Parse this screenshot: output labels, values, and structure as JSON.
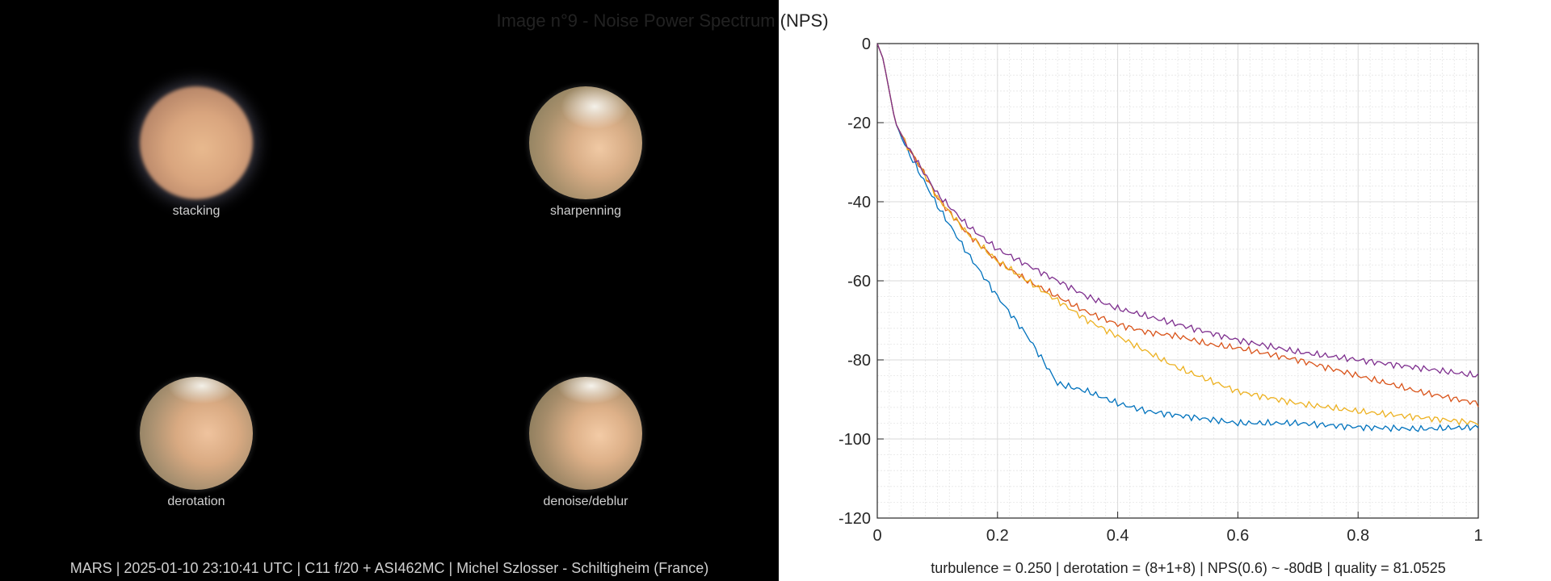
{
  "left": {
    "planets": [
      {
        "label": "stacking"
      },
      {
        "label": "sharpenning"
      },
      {
        "label": "derotation"
      },
      {
        "label": "denoise/deblur"
      }
    ],
    "caption": "MARS | 2025-01-10  23:10:41 UTC | C11 f/20 + ASI462MC | Michel Szlosser - Schiltigheim (France)"
  },
  "chart_data": {
    "type": "line",
    "title": "Image n°9 - Noise Power Spectrum (NPS)",
    "xlabel": "",
    "ylabel": "",
    "xlim": [
      0,
      1
    ],
    "ylim": [
      -120,
      0
    ],
    "x_ticks": [
      "0",
      "0.2",
      "0.4",
      "0.6",
      "0.8",
      "1"
    ],
    "y_ticks": [
      "0",
      "-20",
      "-40",
      "-60",
      "-80",
      "-100",
      "-120"
    ],
    "grid": true,
    "caption": "turbulence = 0.250 | derotation = (8+1+8) | NPS(0.6) ~ -80dB |  quality = 81.0525",
    "series": [
      {
        "color": "#0072BD",
        "x": [
          0,
          0.01,
          0.02,
          0.03,
          0.05,
          0.075,
          0.1,
          0.15,
          0.2,
          0.25,
          0.3,
          0.35,
          0.4,
          0.45,
          0.5,
          0.55,
          0.6,
          0.7,
          0.8,
          0.9,
          1.0
        ],
        "y": [
          0,
          -4,
          -12,
          -20,
          -27,
          -34,
          -41,
          -53,
          -64,
          -74,
          -86,
          -88,
          -91,
          -93,
          -94,
          -95,
          -96,
          -96,
          -97,
          -97.5,
          -97
        ]
      },
      {
        "color": "#D95319",
        "x": [
          0,
          0.01,
          0.02,
          0.03,
          0.05,
          0.075,
          0.1,
          0.15,
          0.2,
          0.25,
          0.3,
          0.35,
          0.4,
          0.45,
          0.5,
          0.55,
          0.6,
          0.7,
          0.8,
          0.9,
          1.0
        ],
        "y": [
          0,
          -4,
          -12,
          -20,
          -26,
          -32,
          -39,
          -48,
          -55,
          -60,
          -64,
          -68,
          -71,
          -73,
          -74,
          -76,
          -77,
          -80,
          -84,
          -88,
          -91
        ]
      },
      {
        "color": "#EDB120",
        "x": [
          0,
          0.01,
          0.02,
          0.03,
          0.05,
          0.075,
          0.1,
          0.15,
          0.2,
          0.25,
          0.3,
          0.35,
          0.4,
          0.45,
          0.5,
          0.55,
          0.6,
          0.7,
          0.8,
          0.9,
          1.0
        ],
        "y": [
          0,
          -4,
          -12,
          -20,
          -26,
          -32,
          -39,
          -48,
          -55,
          -60,
          -65,
          -70,
          -74,
          -78,
          -82,
          -85,
          -88,
          -91,
          -93,
          -94.5,
          -96
        ]
      },
      {
        "color": "#7E2F8E",
        "x": [
          0,
          0.01,
          0.02,
          0.03,
          0.05,
          0.075,
          0.1,
          0.15,
          0.2,
          0.25,
          0.3,
          0.35,
          0.4,
          0.45,
          0.5,
          0.55,
          0.6,
          0.7,
          0.8,
          0.9,
          1.0
        ],
        "y": [
          0,
          -4,
          -12,
          -20,
          -26,
          -32,
          -38,
          -46,
          -52,
          -56,
          -60,
          -64,
          -67,
          -69,
          -71,
          -73,
          -75,
          -78,
          -80,
          -82,
          -84
        ]
      }
    ]
  }
}
